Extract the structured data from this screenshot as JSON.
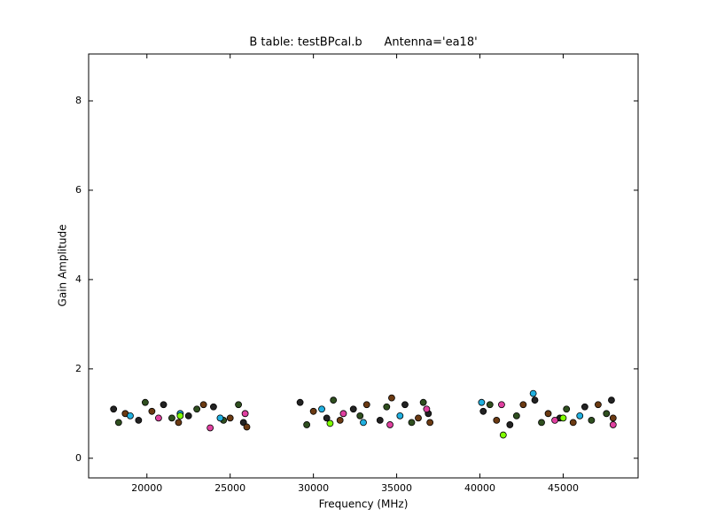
{
  "chart_data": {
    "type": "scatter",
    "title": "B table: testBPcal.b      Antenna='ea18'",
    "x_label": "Frequency (MHz)",
    "y_label": "Gain Amplitude",
    "xlim": [
      16500,
      49500
    ],
    "ylim": [
      -0.44,
      9.05
    ],
    "xticks": [
      20000,
      25000,
      30000,
      35000,
      40000,
      45000
    ],
    "yticks": [
      0,
      2,
      4,
      6,
      8
    ],
    "grid": false,
    "series": [
      {
        "color": "#222222",
        "x": [
          18000,
          19500,
          21000,
          22500,
          24000,
          25800,
          29200,
          30800,
          32400,
          34000,
          35500,
          36900,
          40200,
          41800,
          43300,
          44800,
          46300,
          47900
        ],
        "values": [
          1.1,
          0.85,
          1.2,
          0.95,
          1.15,
          0.8,
          1.25,
          0.9,
          1.1,
          0.85,
          1.2,
          1.0,
          1.05,
          0.75,
          1.3,
          0.9,
          1.15,
          1.3
        ]
      },
      {
        "color": "#2f4f1f",
        "x": [
          18300,
          19900,
          21500,
          23000,
          24600,
          25500,
          29600,
          31200,
          32800,
          34400,
          35900,
          36600,
          40600,
          42200,
          43700,
          45200,
          46700,
          47600
        ],
        "values": [
          0.8,
          1.25,
          0.9,
          1.1,
          0.85,
          1.2,
          0.75,
          1.3,
          0.95,
          1.15,
          0.8,
          1.25,
          1.2,
          0.95,
          0.8,
          1.1,
          0.85,
          1.0
        ]
      },
      {
        "color": "#6b3a12",
        "x": [
          18700,
          20300,
          21900,
          23400,
          25000,
          26000,
          30000,
          31600,
          33200,
          34700,
          36300,
          37000,
          41000,
          42600,
          44100,
          45600,
          47100,
          48000
        ],
        "values": [
          1.0,
          1.05,
          0.8,
          1.2,
          0.9,
          0.7,
          1.05,
          0.85,
          1.2,
          1.35,
          0.9,
          0.8,
          0.85,
          1.2,
          1.0,
          0.8,
          1.2,
          0.9
        ]
      },
      {
        "color": "#20b0e0",
        "x": [
          19000,
          22000,
          24400,
          30500,
          33000,
          35200,
          40100,
          43200,
          46000
        ],
        "values": [
          0.95,
          1.0,
          0.9,
          1.1,
          0.8,
          0.95,
          1.25,
          1.45,
          0.95
        ]
      },
      {
        "color": "#e040a0",
        "x": [
          20700,
          23800,
          25900,
          31800,
          34600,
          36800,
          41300,
          44500,
          48000
        ],
        "values": [
          0.9,
          0.68,
          1.0,
          1.0,
          0.75,
          1.1,
          1.2,
          0.85,
          0.75
        ]
      },
      {
        "color": "#7fff00",
        "x": [
          22000,
          31000,
          41400,
          45000
        ],
        "values": [
          0.95,
          0.78,
          0.52,
          0.9
        ]
      }
    ]
  }
}
